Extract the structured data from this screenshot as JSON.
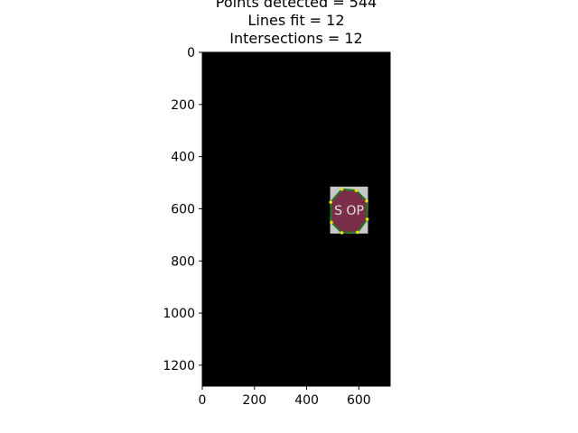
{
  "chart_data": {
    "type": "image",
    "title_lines": [
      "Points detected = 544",
      "Lines fit = 12",
      "Intersections = 12"
    ],
    "xlabel": "",
    "ylabel": "",
    "xlim": [
      0,
      720
    ],
    "ylim": [
      1280,
      0
    ],
    "x_ticks": [
      0,
      200,
      400,
      600
    ],
    "y_ticks": [
      0,
      200,
      400,
      600,
      800,
      1000,
      1200
    ],
    "grid": false,
    "background_color": "#000000",
    "sign_region": {
      "x": [
        490,
        635
      ],
      "y": [
        515,
        695
      ]
    },
    "octagon_vertices": [
      [
        535,
        525
      ],
      [
        590,
        530
      ],
      [
        630,
        570
      ],
      [
        632,
        640
      ],
      [
        595,
        690
      ],
      [
        535,
        692
      ],
      [
        495,
        652
      ],
      [
        492,
        575
      ]
    ],
    "sign_text": "S OP",
    "colors": {
      "sign_fill": "#7a2e4a",
      "sign_background": "#c8c8c8",
      "fit_lines": "#1f7a1f",
      "intersections": "#e8e000",
      "text": "#e0e0e0"
    }
  }
}
